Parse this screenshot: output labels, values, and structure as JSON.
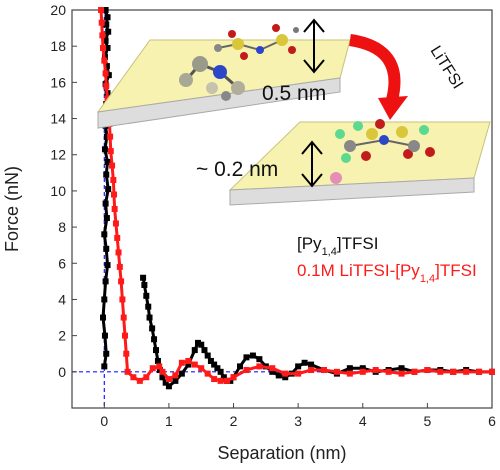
{
  "chart_data": {
    "type": "scatter",
    "xlabel": "Separation (nm)",
    "ylabel": "Force (nN)",
    "xlim": [
      -0.5,
      6
    ],
    "ylim": [
      -2,
      20
    ],
    "xticks": [
      "0",
      "1",
      "2",
      "3",
      "4",
      "5",
      "6"
    ],
    "yticks": [
      "0",
      "2",
      "4",
      "6",
      "8",
      "10",
      "12",
      "14",
      "16",
      "18",
      "20"
    ],
    "series": [
      {
        "name": "[Py1,4]TFSI",
        "color": "#000000",
        "x": [
          0.02,
          0.05,
          0.03,
          0.06,
          0.02,
          0.05,
          0.01,
          0.04,
          0.07,
          0.02,
          0.05,
          0.03,
          0.06,
          0.02,
          0.04,
          0.01,
          0.05,
          0.03,
          0.06,
          0.02,
          0.04,
          0.0,
          0.03,
          0.05,
          0.02,
          0.0,
          -0.02,
          0.01,
          0.03,
          0.0,
          0.6,
          0.62,
          0.65,
          0.68,
          0.7,
          0.74,
          0.77,
          0.8,
          0.83,
          0.86,
          0.9,
          0.95,
          1.0,
          1.1,
          1.2,
          1.3,
          1.4,
          1.45,
          1.5,
          1.55,
          1.6,
          1.65,
          1.7,
          1.75,
          1.8,
          1.85,
          1.9,
          1.95,
          2.0,
          2.1,
          2.2,
          2.3,
          2.4,
          2.5,
          2.6,
          2.7,
          2.8,
          2.9,
          3.0,
          3.1,
          3.2,
          3.4,
          3.6,
          3.8,
          4.0,
          4.2,
          4.4,
          4.6,
          4.8,
          5.0,
          5.2,
          5.4,
          5.6,
          5.8,
          6.0
        ],
        "y": [
          20,
          19.6,
          19.2,
          18.8,
          18.3,
          17.9,
          17.4,
          16.9,
          16.4,
          15.9,
          15.4,
          14.8,
          14.2,
          13.6,
          13,
          12.3,
          11.6,
          10.9,
          10.1,
          9.3,
          8.5,
          7.6,
          6.8,
          5.9,
          5.0,
          4.0,
          3.0,
          2.0,
          1.0,
          0.3,
          5.2,
          4.8,
          4.2,
          3.6,
          3.0,
          2.4,
          1.8,
          1.2,
          0.6,
          0.1,
          -0.3,
          -0.6,
          -0.8,
          -0.5,
          -0.1,
          0.4,
          1.2,
          1.6,
          1.5,
          1.2,
          0.9,
          0.6,
          0.4,
          0.2,
          0.0,
          -0.3,
          -0.5,
          -0.5,
          -0.3,
          0.3,
          0.8,
          0.9,
          0.7,
          0.3,
          0.0,
          -0.2,
          -0.3,
          -0.1,
          0.3,
          0.5,
          0.4,
          0.1,
          -0.1,
          0.2,
          0.2,
          0.0,
          0.1,
          0.2,
          0.0,
          0.1,
          0.1,
          0.0,
          0.1,
          0.0,
          0.0
        ]
      },
      {
        "name": "0.1M LiTFSI-[Py1,4]TFSI",
        "color": "#ff1a1a",
        "x": [
          -0.05,
          -0.04,
          -0.03,
          -0.02,
          0.0,
          0.02,
          0.03,
          0.05,
          0.07,
          0.08,
          0.09,
          0.1,
          0.12,
          0.14,
          0.15,
          0.16,
          0.18,
          0.2,
          0.22,
          0.24,
          0.26,
          0.28,
          0.3,
          0.32,
          0.34,
          0.36,
          0.45,
          0.55,
          0.65,
          0.75,
          0.85,
          0.9,
          1.0,
          1.1,
          1.2,
          1.3,
          1.4,
          1.5,
          1.6,
          1.7,
          1.8,
          1.9,
          2.0,
          2.2,
          2.4,
          2.6,
          2.8,
          3.0,
          3.2,
          3.4,
          3.6,
          3.8,
          4.0,
          4.2,
          4.4,
          4.6,
          4.8,
          5.0,
          5.2,
          5.4,
          5.6,
          5.8,
          6.0
        ],
        "y": [
          20,
          19.3,
          18.6,
          17.9,
          17.2,
          16.5,
          15.8,
          15.1,
          14.4,
          13.7,
          13.0,
          12.2,
          11.4,
          10.6,
          9.8,
          9.0,
          8.2,
          7.4,
          6.6,
          5.8,
          5.0,
          4.0,
          3.0,
          2.0,
          1.0,
          0.0,
          -0.3,
          -0.5,
          -0.3,
          0.2,
          0.3,
          0.0,
          -0.4,
          -0.2,
          0.5,
          0.6,
          0.4,
          0.2,
          -0.1,
          -0.4,
          -0.5,
          -0.5,
          -0.3,
          0.1,
          0.3,
          0.2,
          -0.1,
          -0.1,
          0.1,
          0.1,
          0.0,
          -0.1,
          0.0,
          0.1,
          0.0,
          -0.1,
          0.0,
          0.1,
          0.0,
          0.0,
          0.0,
          0.0,
          0.0
        ]
      }
    ],
    "reference_lines": {
      "x": 0,
      "y": 0,
      "color": "#1a1aff",
      "style": "dashed"
    },
    "legend": {
      "entries": [
        {
          "prefix": "[Py",
          "sub": "1,4",
          "suffix": "]TFSI",
          "color": "#111111"
        },
        {
          "prefix": "0.1M LiTFSI-[Py",
          "sub": "1,4",
          "suffix": "]TFSI",
          "color": "#ff1a1a"
        }
      ]
    },
    "annotations": {
      "top_distance": "0.5 nm",
      "bottom_distance": "~ 0.2 nm",
      "arrow_label": "LiTFSI"
    }
  }
}
